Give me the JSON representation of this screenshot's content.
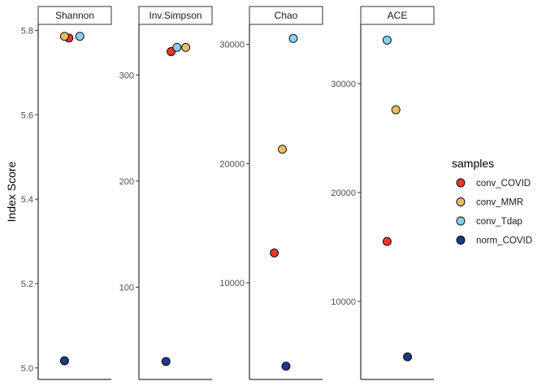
{
  "chart_data": {
    "type": "scatter",
    "ylabel": "Index Score",
    "legend": {
      "title": "samples",
      "position": "right",
      "entries": [
        {
          "name": "conv_COVID",
          "color": "#E8392B"
        },
        {
          "name": "conv_MMR",
          "color": "#E9BD61"
        },
        {
          "name": "conv_Tdap",
          "color": "#8ACFF2"
        },
        {
          "name": "norm_COVID",
          "color": "#1A3A8A"
        }
      ]
    },
    "grid": false,
    "panels": [
      {
        "strip": "Shannon",
        "ylim": [
          4.99,
          5.795
        ],
        "yticks": [
          5.0,
          5.2,
          5.4,
          5.6,
          5.8
        ],
        "ytick_labels": [
          "5.0",
          "5.2",
          "5.4",
          "5.6",
          "5.8"
        ],
        "points": [
          {
            "sample": "conv_COVID",
            "value": 5.782
          },
          {
            "sample": "conv_MMR",
            "value": 5.786
          },
          {
            "sample": "conv_Tdap",
            "value": 5.786
          },
          {
            "sample": "norm_COVID",
            "value": 5.017
          }
        ]
      },
      {
        "strip": "Inv.Simpson",
        "ylim": [
          20,
          340
        ],
        "yticks": [
          100,
          200,
          300
        ],
        "ytick_labels": [
          "100",
          "200",
          "300"
        ],
        "points": [
          {
            "sample": "conv_COVID",
            "value": 322
          },
          {
            "sample": "conv_MMR",
            "value": 326
          },
          {
            "sample": "conv_Tdap",
            "value": 326
          },
          {
            "sample": "norm_COVID",
            "value": 30
          }
        ]
      },
      {
        "strip": "Chao",
        "ylim": [
          2500,
          31000
        ],
        "yticks": [
          10000,
          20000,
          30000
        ],
        "ytick_labels": [
          "10000",
          "20000",
          "30000"
        ],
        "points": [
          {
            "sample": "conv_COVID",
            "value": 12500
          },
          {
            "sample": "conv_MMR",
            "value": 21200
          },
          {
            "sample": "conv_Tdap",
            "value": 30500
          },
          {
            "sample": "norm_COVID",
            "value": 3000
          }
        ]
      },
      {
        "strip": "ACE",
        "ylim": [
          3500,
          34700
        ],
        "yticks": [
          10000,
          20000,
          30000
        ],
        "ytick_labels": [
          "10000",
          "20000",
          "30000"
        ],
        "points": [
          {
            "sample": "conv_COVID",
            "value": 15500
          },
          {
            "sample": "conv_MMR",
            "value": 27600
          },
          {
            "sample": "conv_Tdap",
            "value": 34000
          },
          {
            "sample": "norm_COVID",
            "value": 4900
          }
        ]
      }
    ]
  }
}
